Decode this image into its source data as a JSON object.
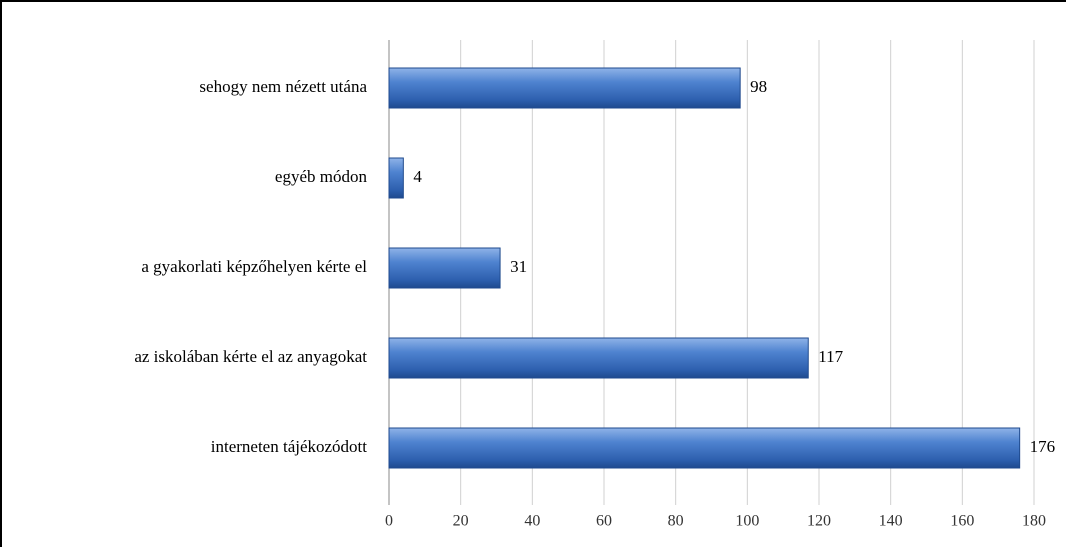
{
  "chart_data": {
    "type": "hbar",
    "categories": [
      "sehogy nem nézett utána",
      "egyéb módon",
      "a gyakorlati képzőhelyen kérte el",
      "az iskolában kérte el az anyagokat",
      "interneten tájékozódott"
    ],
    "values": [
      98,
      4,
      31,
      117,
      176
    ],
    "color": "#3f74c4",
    "xlim": [
      0,
      180
    ],
    "xticks": [
      0,
      20,
      40,
      60,
      80,
      100,
      120,
      140,
      160,
      180
    ],
    "grid": true
  }
}
